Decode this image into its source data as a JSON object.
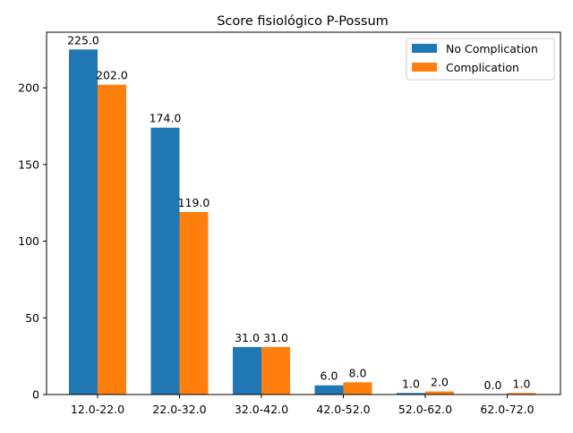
{
  "chart_data": {
    "type": "bar",
    "title": "Score fisiológico P-Possum",
    "xlabel": "",
    "ylabel": "",
    "categories": [
      "12.0-22.0",
      "22.0-32.0",
      "32.0-42.0",
      "42.0-52.0",
      "52.0-62.0",
      "62.0-72.0"
    ],
    "series": [
      {
        "name": "No Complication",
        "color": "#1f77b4",
        "values": [
          225.0,
          174.0,
          31.0,
          6.0,
          1.0,
          0.0
        ],
        "labels": [
          "225.0",
          "174.0",
          "31.0",
          "6.0",
          "1.0",
          "0.0"
        ]
      },
      {
        "name": "Complication",
        "color": "#ff7f0e",
        "values": [
          202.0,
          119.0,
          31.0,
          8.0,
          2.0,
          1.0
        ],
        "labels": [
          "202.0",
          "119.0",
          "31.0",
          "8.0",
          "2.0",
          "1.0"
        ]
      }
    ],
    "ylim": [
      0,
      236.25
    ],
    "yticks": [
      0,
      50,
      100,
      150,
      200
    ],
    "ytick_labels": [
      "0",
      "50",
      "100",
      "150",
      "200"
    ],
    "grid": false,
    "legend_position": "top-right"
  }
}
